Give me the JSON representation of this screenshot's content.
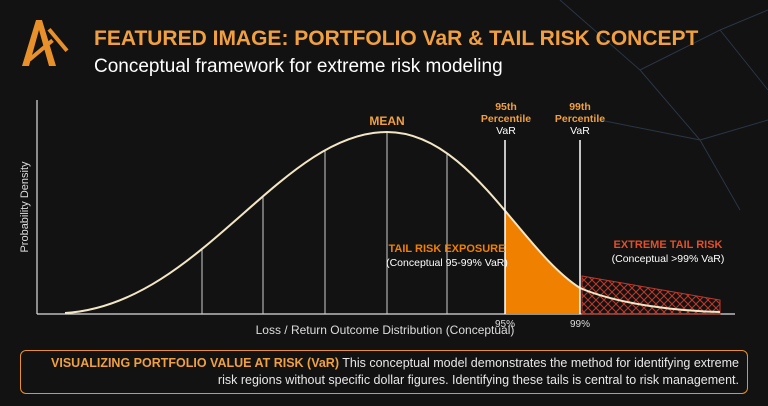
{
  "header": {
    "title": "FEATURED IMAGE: PORTFOLIO VaR & TAIL RISK CONCEPT",
    "subtitle": "Conceptual framework for extreme risk modeling"
  },
  "diagram": {
    "y_axis_label": "Probability Density",
    "x_axis_label": "Loss / Return Outcome Distribution (Conceptual)",
    "mean_label": "MEAN",
    "var_95": {
      "lines": [
        "95th",
        "Percentile",
        "VaR"
      ],
      "tick": "95%"
    },
    "var_99": {
      "lines": [
        "99th",
        "Percentile",
        "VaR"
      ],
      "tick": "99%"
    },
    "tail_risk": {
      "title": "TAIL RISK EXPOSURE",
      "note": "(Conceptual 95-99% VaR)"
    },
    "extreme_tail": {
      "title": "EXTREME TAIL RISK",
      "note": "(Conceptual >99% VaR)"
    }
  },
  "footer": {
    "lead": "VISUALIZING PORTFOLIO VALUE AT RISK (VaR)",
    "text": "This conceptual model demonstrates the method for identifying extreme risk regions without specific dollar figures. Identifying these tails is central to risk management."
  }
}
